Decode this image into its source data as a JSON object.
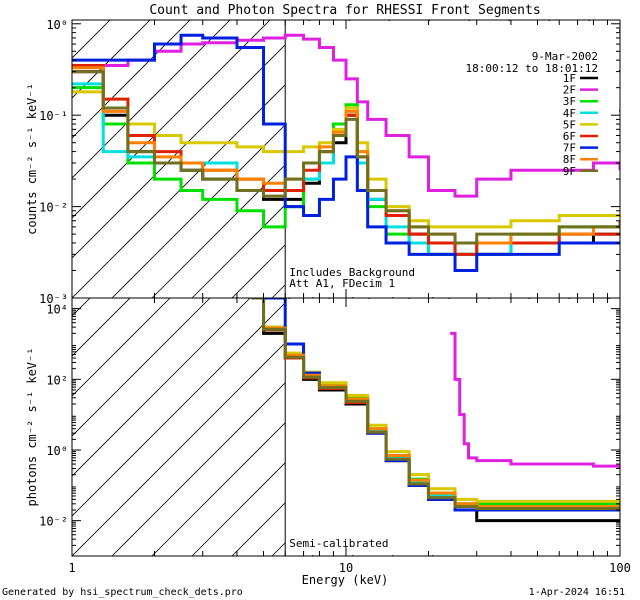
{
  "title": "Count and Photon Spectra for RHESSI Front Segments",
  "date": "9-Mar-2002",
  "time_range": "18:00:12 to 18:01:12",
  "footer_left": "Generated by hsi_spectrum_check_dets.pro",
  "footer_right": "1-Apr-2024 16:51",
  "colors": {
    "1F": "#000000",
    "2F": "#e020e0",
    "3F": "#00e000",
    "4F": "#00e0e0",
    "5F": "#d8c800",
    "6F": "#e02000",
    "7F": "#0020e0",
    "8F": "#ff8000",
    "9F": "#707020"
  },
  "chart_data": [
    {
      "type": "line",
      "panel": "top",
      "title": "Count and Photon Spectra for RHESSI Front Segments",
      "xlabel": "Energy (keV)",
      "ylabel": "counts cm⁻² s⁻¹ keV⁻¹",
      "xscale": "log",
      "yscale": "log",
      "xlim": [
        1,
        100
      ],
      "ylim": [
        0.001,
        1.1
      ],
      "xticks": [
        {
          "v": 1,
          "label": "1"
        },
        {
          "v": 10,
          "label": "10"
        },
        {
          "v": 100,
          "label": "100"
        }
      ],
      "yticks": [
        {
          "v": 0.001,
          "label": "10⁻³"
        },
        {
          "v": 0.01,
          "label": "10⁻²"
        },
        {
          "v": 0.1,
          "label": "10⁻¹"
        },
        {
          "v": 1,
          "label": "10⁰"
        }
      ],
      "annotations": [
        "Includes Background",
        "Att A1, FDecim 1"
      ],
      "legend": [
        "1F",
        "2F",
        "3F",
        "4F",
        "5F",
        "6F",
        "7F",
        "8F",
        "9F"
      ],
      "series": [
        {
          "name": "1F",
          "x": [
            1.0,
            1.3,
            1.6,
            2.0,
            2.5,
            3.0,
            4.0,
            5.0,
            6.0,
            7.0,
            8.0,
            9.0,
            10.0,
            11.0,
            12.0,
            14.0,
            17.0,
            20.0,
            25.0,
            30.0,
            40.0,
            60.0,
            80.0,
            100.0
          ],
          "y": [
            0.3,
            0.1,
            0.04,
            0.03,
            0.025,
            0.02,
            0.015,
            0.012,
            0.012,
            0.018,
            0.03,
            0.05,
            0.1,
            0.03,
            0.012,
            0.008,
            0.005,
            0.004,
            0.003,
            0.003,
            0.004,
            0.004,
            0.005,
            0.005
          ]
        },
        {
          "name": "2F",
          "x": [
            1.0,
            1.3,
            1.6,
            2.0,
            2.5,
            3.0,
            4.0,
            5.0,
            6.0,
            7.0,
            8.0,
            9.0,
            10.0,
            11.0,
            12.0,
            14.0,
            17.0,
            20.0,
            25.0,
            30.0,
            40.0,
            60.0,
            80.0,
            100.0
          ],
          "y": [
            0.3,
            0.35,
            0.4,
            0.5,
            0.6,
            0.62,
            0.66,
            0.7,
            0.75,
            0.68,
            0.55,
            0.4,
            0.25,
            0.14,
            0.09,
            0.06,
            0.035,
            0.015,
            0.013,
            0.02,
            0.025,
            0.025,
            0.03,
            0.025
          ]
        },
        {
          "name": "3F",
          "x": [
            1.0,
            1.3,
            1.6,
            2.0,
            2.5,
            3.0,
            4.0,
            5.0,
            6.0,
            7.0,
            8.0,
            9.0,
            10.0,
            11.0,
            12.0,
            14.0,
            17.0,
            20.0,
            25.0,
            30.0,
            40.0,
            60.0,
            80.0,
            100.0
          ],
          "y": [
            0.2,
            0.08,
            0.03,
            0.02,
            0.015,
            0.012,
            0.009,
            0.006,
            0.01,
            0.02,
            0.04,
            0.08,
            0.13,
            0.04,
            0.01,
            0.005,
            0.004,
            0.003,
            0.003,
            0.004,
            0.005,
            0.006,
            0.006,
            0.007
          ]
        },
        {
          "name": "4F",
          "x": [
            1.0,
            1.3,
            1.6,
            2.0,
            2.5,
            3.0,
            4.0,
            5.0,
            6.0,
            7.0,
            8.0,
            9.0,
            10.0,
            11.0,
            12.0,
            14.0,
            17.0,
            20.0,
            25.0,
            30.0,
            40.0,
            60.0,
            80.0,
            100.0
          ],
          "y": [
            0.22,
            0.04,
            0.035,
            0.03,
            0.03,
            0.03,
            0.02,
            0.015,
            0.015,
            0.02,
            0.03,
            0.06,
            0.1,
            0.03,
            0.012,
            0.006,
            0.004,
            0.003,
            0.003,
            0.003,
            0.004,
            0.005,
            0.005,
            0.005
          ]
        },
        {
          "name": "5F",
          "x": [
            1.0,
            1.3,
            1.6,
            2.0,
            2.5,
            3.0,
            4.0,
            5.0,
            6.0,
            7.0,
            8.0,
            9.0,
            10.0,
            11.0,
            12.0,
            14.0,
            17.0,
            20.0,
            25.0,
            30.0,
            40.0,
            60.0,
            80.0,
            100.0
          ],
          "y": [
            0.18,
            0.12,
            0.08,
            0.06,
            0.05,
            0.05,
            0.045,
            0.04,
            0.04,
            0.045,
            0.05,
            0.07,
            0.12,
            0.05,
            0.02,
            0.01,
            0.007,
            0.006,
            0.006,
            0.006,
            0.007,
            0.008,
            0.008,
            0.008
          ]
        },
        {
          "name": "6F",
          "x": [
            1.0,
            1.3,
            1.6,
            2.0,
            2.5,
            3.0,
            4.0,
            5.0,
            6.0,
            7.0,
            8.0,
            9.0,
            10.0,
            11.0,
            12.0,
            14.0,
            17.0,
            20.0,
            25.0,
            30.0,
            40.0,
            60.0,
            80.0,
            100.0
          ],
          "y": [
            0.35,
            0.15,
            0.06,
            0.04,
            0.03,
            0.025,
            0.02,
            0.015,
            0.015,
            0.025,
            0.04,
            0.06,
            0.1,
            0.035,
            0.015,
            0.008,
            0.005,
            0.004,
            0.003,
            0.004,
            0.004,
            0.005,
            0.005,
            0.005
          ]
        },
        {
          "name": "7F",
          "x": [
            1.0,
            1.3,
            1.6,
            2.0,
            2.5,
            3.0,
            4.0,
            5.0,
            6.0,
            7.0,
            8.0,
            9.0,
            10.0,
            11.0,
            12.0,
            14.0,
            17.0,
            20.0,
            25.0,
            30.0,
            40.0,
            60.0,
            80.0,
            100.0
          ],
          "y": [
            0.4,
            0.4,
            0.4,
            0.6,
            0.75,
            0.7,
            0.55,
            0.08,
            0.01,
            0.008,
            0.012,
            0.02,
            0.035,
            0.015,
            0.006,
            0.004,
            0.003,
            0.003,
            0.002,
            0.003,
            0.003,
            0.004,
            0.004,
            0.004
          ]
        },
        {
          "name": "8F",
          "x": [
            1.0,
            1.3,
            1.6,
            2.0,
            2.5,
            3.0,
            4.0,
            5.0,
            6.0,
            7.0,
            8.0,
            9.0,
            10.0,
            11.0,
            12.0,
            14.0,
            17.0,
            20.0,
            25.0,
            30.0,
            40.0,
            60.0,
            80.0,
            100.0
          ],
          "y": [
            0.33,
            0.11,
            0.05,
            0.035,
            0.03,
            0.025,
            0.02,
            0.018,
            0.02,
            0.03,
            0.045,
            0.065,
            0.11,
            0.04,
            0.015,
            0.009,
            0.006,
            0.005,
            0.004,
            0.004,
            0.005,
            0.005,
            0.006,
            0.006
          ]
        },
        {
          "name": "9F",
          "x": [
            1.0,
            1.3,
            1.6,
            2.0,
            2.5,
            3.0,
            4.0,
            5.0,
            6.0,
            7.0,
            8.0,
            9.0,
            10.0,
            11.0,
            12.0,
            14.0,
            17.0,
            20.0,
            25.0,
            30.0,
            40.0,
            60.0,
            80.0,
            100.0
          ],
          "y": [
            0.3,
            0.12,
            0.04,
            0.03,
            0.025,
            0.02,
            0.015,
            0.013,
            0.02,
            0.03,
            0.04,
            0.06,
            0.09,
            0.035,
            0.015,
            0.009,
            0.006,
            0.005,
            0.004,
            0.005,
            0.005,
            0.006,
            0.006,
            0.007
          ]
        }
      ]
    },
    {
      "type": "line",
      "panel": "bottom",
      "xlabel": "Energy (keV)",
      "ylabel": "photons cm⁻² s⁻¹ keV⁻¹",
      "xscale": "log",
      "yscale": "log",
      "xlim": [
        1,
        100
      ],
      "ylim": [
        0.001,
        20000
      ],
      "xticks": [
        {
          "v": 1,
          "label": "1"
        },
        {
          "v": 10,
          "label": "10"
        },
        {
          "v": 100,
          "label": "100"
        }
      ],
      "yticks": [
        {
          "v": 0.01,
          "label": "10⁻²"
        },
        {
          "v": 1,
          "label": "10⁰"
        },
        {
          "v": 100,
          "label": "10²"
        },
        {
          "v": 10000,
          "label": "10⁴"
        }
      ],
      "annotations": [
        "Semi-calibrated"
      ],
      "series": [
        {
          "name": "1F",
          "x": [
            4.5,
            5.0,
            6.0,
            7.0,
            8.0,
            10.0,
            12.0,
            14.0,
            17.0,
            20.0,
            25.0,
            30.0,
            40.0,
            60.0,
            80.0,
            100.0
          ],
          "y": [
            20000,
            2000,
            400,
            100,
            50,
            20,
            3,
            0.5,
            0.1,
            0.04,
            0.02,
            0.01,
            0.01,
            0.01,
            0.01,
            0.01
          ]
        },
        {
          "name": "2F",
          "x": [
            24.0,
            25.0,
            26.0,
            27.0,
            28.0,
            30.0,
            40.0,
            60.0,
            80.0,
            100.0
          ],
          "y": [
            2000,
            100,
            10,
            1.5,
            0.6,
            0.5,
            0.4,
            0.4,
            0.35,
            0.3
          ]
        },
        {
          "name": "3F",
          "x": [
            4.5,
            5.0,
            6.0,
            7.0,
            8.0,
            10.0,
            12.0,
            14.0,
            17.0,
            20.0,
            25.0,
            30.0,
            40.0,
            60.0,
            80.0,
            100.0
          ],
          "y": [
            20000,
            3000,
            500,
            150,
            70,
            30,
            4,
            0.7,
            0.15,
            0.06,
            0.03,
            0.03,
            0.03,
            0.03,
            0.03,
            0.03
          ]
        },
        {
          "name": "4F",
          "x": [
            4.5,
            5.0,
            6.0,
            7.0,
            8.0,
            10.0,
            12.0,
            14.0,
            17.0,
            20.0,
            25.0,
            30.0,
            40.0,
            60.0,
            80.0,
            100.0
          ],
          "y": [
            20000,
            2500,
            450,
            120,
            60,
            25,
            3.5,
            0.6,
            0.12,
            0.05,
            0.02,
            0.02,
            0.02,
            0.02,
            0.02,
            0.02
          ]
        },
        {
          "name": "5F",
          "x": [
            4.5,
            5.0,
            6.0,
            7.0,
            8.0,
            10.0,
            12.0,
            14.0,
            17.0,
            20.0,
            25.0,
            30.0,
            40.0,
            60.0,
            80.0,
            100.0
          ],
          "y": [
            20000,
            3000,
            550,
            160,
            80,
            35,
            5,
            0.9,
            0.2,
            0.08,
            0.04,
            0.035,
            0.035,
            0.035,
            0.035,
            0.03
          ]
        },
        {
          "name": "6F",
          "x": [
            4.5,
            5.0,
            6.0,
            7.0,
            8.0,
            10.0,
            12.0,
            14.0,
            17.0,
            20.0,
            25.0,
            30.0,
            40.0,
            60.0,
            80.0,
            100.0
          ],
          "y": [
            20000,
            2500,
            400,
            110,
            55,
            22,
            3,
            0.5,
            0.1,
            0.04,
            0.02,
            0.02,
            0.02,
            0.02,
            0.02,
            0.02
          ]
        },
        {
          "name": "7F",
          "x": [
            5.0,
            6.0,
            7.0,
            8.0,
            10.0,
            12.0,
            14.0,
            17.0,
            20.0,
            25.0,
            30.0,
            40.0,
            60.0,
            80.0,
            100.0
          ],
          "y": [
            20000,
            1000,
            150,
            60,
            25,
            3,
            0.5,
            0.1,
            0.04,
            0.02,
            0.02,
            0.02,
            0.02,
            0.02,
            0.02
          ]
        },
        {
          "name": "8F",
          "x": [
            4.5,
            5.0,
            6.0,
            7.0,
            8.0,
            10.0,
            12.0,
            14.0,
            17.0,
            20.0,
            25.0,
            30.0,
            40.0,
            60.0,
            80.0,
            100.0
          ],
          "y": [
            20000,
            2800,
            480,
            130,
            65,
            28,
            4,
            0.7,
            0.14,
            0.06,
            0.03,
            0.025,
            0.025,
            0.025,
            0.025,
            0.025
          ]
        },
        {
          "name": "9F",
          "x": [
            4.5,
            5.0,
            6.0,
            7.0,
            8.0,
            10.0,
            12.0,
            14.0,
            17.0,
            20.0,
            25.0,
            30.0,
            40.0,
            60.0,
            80.0,
            100.0
          ],
          "y": [
            20000,
            2600,
            420,
            115,
            58,
            24,
            3.2,
            0.55,
            0.11,
            0.045,
            0.025,
            0.022,
            0.022,
            0.022,
            0.022,
            0.022
          ]
        }
      ]
    }
  ]
}
